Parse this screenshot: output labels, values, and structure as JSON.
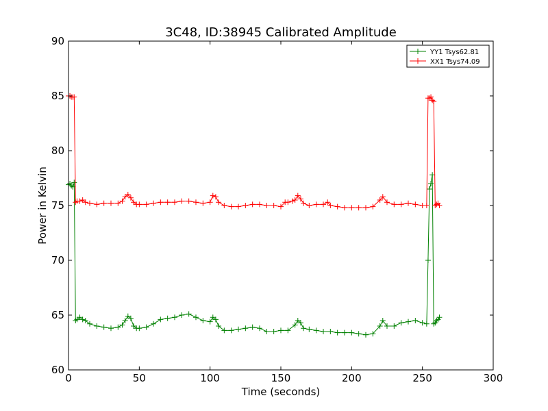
{
  "chart_data": {
    "type": "line",
    "title": "3C48, ID:38945 Calibrated Amplitude",
    "xlabel": "Time (seconds)",
    "ylabel": "Power in Kelvin",
    "xlim": [
      0,
      300
    ],
    "ylim": [
      60,
      90
    ],
    "xticks": [
      0,
      50,
      100,
      150,
      200,
      250,
      300
    ],
    "yticks": [
      60,
      65,
      70,
      75,
      80,
      85,
      90
    ],
    "grid": false,
    "legend_position": "top-right",
    "marker": "plus",
    "series": [
      {
        "name": "YY1 Tsys62.81",
        "color": "#008000",
        "x": [
          0,
          1,
          2,
          3,
          4,
          5,
          6,
          8,
          10,
          12,
          15,
          20,
          25,
          30,
          35,
          38,
          40,
          42,
          44,
          46,
          48,
          50,
          55,
          60,
          65,
          70,
          75,
          80,
          85,
          90,
          95,
          100,
          102,
          104,
          106,
          110,
          115,
          120,
          125,
          130,
          135,
          140,
          145,
          150,
          155,
          160,
          162,
          164,
          166,
          170,
          175,
          180,
          185,
          190,
          195,
          200,
          205,
          210,
          215,
          220,
          222,
          225,
          230,
          235,
          240,
          245,
          250,
          253,
          254,
          255,
          256,
          257,
          258,
          259,
          260,
          261,
          262
        ],
        "y": [
          76.9,
          77.0,
          76.8,
          76.7,
          77.1,
          64.5,
          64.6,
          64.8,
          64.6,
          64.5,
          64.2,
          64.0,
          63.9,
          63.8,
          63.9,
          64.1,
          64.5,
          64.9,
          64.7,
          64.0,
          63.8,
          63.8,
          63.9,
          64.2,
          64.6,
          64.7,
          64.8,
          65.0,
          65.1,
          64.8,
          64.5,
          64.4,
          64.8,
          64.6,
          64.0,
          63.6,
          63.6,
          63.7,
          63.8,
          63.9,
          63.8,
          63.5,
          63.5,
          63.6,
          63.6,
          64.1,
          64.5,
          64.3,
          63.8,
          63.7,
          63.6,
          63.5,
          63.5,
          63.4,
          63.4,
          63.4,
          63.3,
          63.2,
          63.3,
          64.0,
          64.5,
          64.0,
          64.0,
          64.3,
          64.4,
          64.5,
          64.3,
          64.2,
          70.0,
          76.5,
          77.0,
          77.8,
          64.2,
          64.3,
          64.5,
          64.6,
          64.8
        ]
      },
      {
        "name": "XX1 Tsys74.09",
        "color": "#ff0000",
        "x": [
          0,
          1,
          2,
          3,
          4,
          5,
          6,
          8,
          10,
          12,
          15,
          20,
          25,
          30,
          35,
          38,
          40,
          42,
          44,
          46,
          48,
          50,
          55,
          60,
          65,
          70,
          75,
          80,
          85,
          90,
          95,
          100,
          102,
          104,
          106,
          110,
          115,
          120,
          125,
          130,
          135,
          140,
          145,
          150,
          153,
          155,
          158,
          160,
          162,
          164,
          166,
          170,
          175,
          180,
          183,
          185,
          190,
          195,
          200,
          205,
          210,
          215,
          220,
          222,
          225,
          230,
          235,
          240,
          245,
          250,
          253,
          254,
          255,
          256,
          257,
          258,
          259,
          260,
          261,
          262
        ],
        "y": [
          85.0,
          85.0,
          84.9,
          84.9,
          84.9,
          75.3,
          75.4,
          75.4,
          75.5,
          75.3,
          75.2,
          75.1,
          75.2,
          75.2,
          75.2,
          75.4,
          75.8,
          76.0,
          75.7,
          75.3,
          75.1,
          75.1,
          75.1,
          75.2,
          75.3,
          75.3,
          75.3,
          75.4,
          75.4,
          75.3,
          75.2,
          75.3,
          75.9,
          75.8,
          75.3,
          75.0,
          74.9,
          74.9,
          75.0,
          75.1,
          75.1,
          75.0,
          75.0,
          74.9,
          75.3,
          75.3,
          75.4,
          75.5,
          75.9,
          75.6,
          75.2,
          75.0,
          75.1,
          75.1,
          75.3,
          75.0,
          74.9,
          74.8,
          74.8,
          74.8,
          74.8,
          74.9,
          75.5,
          75.8,
          75.3,
          75.1,
          75.1,
          75.2,
          75.1,
          75.0,
          75.0,
          84.8,
          84.8,
          84.9,
          84.6,
          84.5,
          75.0,
          75.1,
          75.2,
          75.0
        ]
      }
    ]
  }
}
